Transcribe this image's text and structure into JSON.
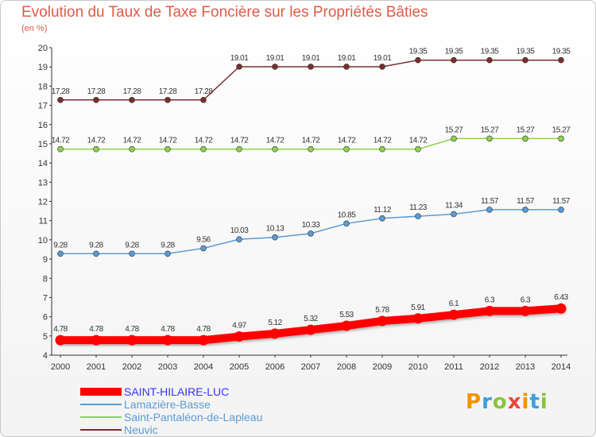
{
  "title": "Evolution du Taux de Taxe Foncière sur les Propriétés Bâties",
  "subtitle": "(en %)",
  "logo": "Proxiti",
  "chart_data": {
    "type": "line",
    "x": [
      2000,
      2001,
      2002,
      2003,
      2004,
      2005,
      2006,
      2007,
      2008,
      2009,
      2010,
      2011,
      2012,
      2013,
      2014
    ],
    "ylim": [
      4,
      20
    ],
    "yticks": [
      4,
      5,
      6,
      7,
      8,
      9,
      10,
      11,
      12,
      13,
      14,
      15,
      16,
      17,
      18,
      19,
      20
    ],
    "grid": false,
    "legend_position": "bottom-left",
    "series": [
      {
        "name": "SAINT-HILAIRE-LUC",
        "color": "#ff0000",
        "label_color": "#3333ff",
        "emphasis": true,
        "values": [
          4.78,
          4.78,
          4.78,
          4.78,
          4.78,
          4.97,
          5.12,
          5.32,
          5.53,
          5.78,
          5.91,
          6.1,
          6.3,
          6.3,
          6.43
        ],
        "labels": [
          "4.78",
          "4.78",
          "4.78",
          "4.78",
          "4.78",
          "4.97",
          "5.12",
          "5.32",
          "5.53",
          "5.78",
          "5.91",
          "6.1",
          "6.3",
          "6.3",
          "6.43"
        ]
      },
      {
        "name": "Lamazière-Basse",
        "color": "#5b9bd5",
        "label_color": "#5b9bd5",
        "emphasis": false,
        "values": [
          9.28,
          9.28,
          9.28,
          9.28,
          9.56,
          10.03,
          10.13,
          10.33,
          10.85,
          11.12,
          11.23,
          11.34,
          11.57,
          11.57,
          11.57
        ],
        "labels": [
          "9.28",
          "9.28",
          "9.28",
          "9.28",
          "9.56",
          "10.03",
          "10.13",
          "10.33",
          "10.85",
          "11.12",
          "11.23",
          "11.34",
          "11.57",
          "11.57",
          "11.57"
        ]
      },
      {
        "name": "Saint-Pantaléon-de-Lapleau",
        "color": "#8fd14f",
        "label_color": "#5b9bd5",
        "emphasis": false,
        "values": [
          14.72,
          14.72,
          14.72,
          14.72,
          14.72,
          14.72,
          14.72,
          14.72,
          14.72,
          14.72,
          14.72,
          15.27,
          15.27,
          15.27,
          15.27
        ],
        "labels": [
          "14.72",
          "14.72",
          "14.72",
          "14.72",
          "14.72",
          "14.72",
          "14.72",
          "14.72",
          "14.72",
          "14.72",
          "14.72",
          "15.27",
          "15.27",
          "15.27",
          "15.27"
        ]
      },
      {
        "name": "Neuvic",
        "color": "#7a2e2e",
        "label_color": "#5b9bd5",
        "emphasis": false,
        "values": [
          17.28,
          17.28,
          17.28,
          17.28,
          17.28,
          19.01,
          19.01,
          19.01,
          19.01,
          19.01,
          19.35,
          19.35,
          19.35,
          19.35,
          19.35
        ],
        "labels": [
          "17.28",
          "17.28",
          "17.28",
          "17.28",
          "17.28",
          "19.01",
          "19.01",
          "19.01",
          "19.01",
          "19.01",
          "19.35",
          "19.35",
          "19.35",
          "19.35",
          "19.35"
        ]
      }
    ]
  }
}
